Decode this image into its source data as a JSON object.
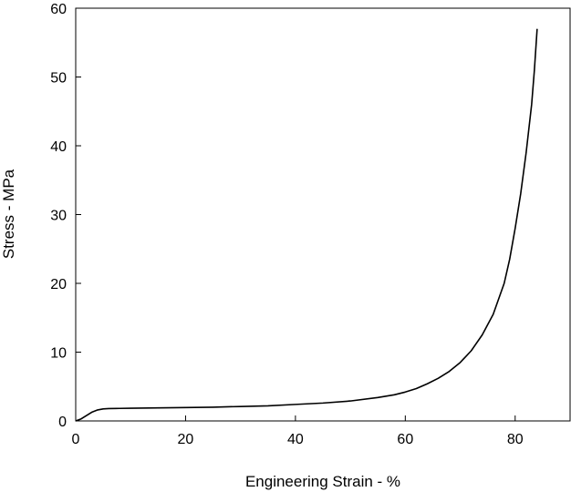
{
  "chart_data": {
    "type": "line",
    "title": "",
    "xlabel": "Engineering Strain - %",
    "ylabel": "Stress - MPa",
    "xlim": [
      0,
      90
    ],
    "ylim": [
      0,
      60
    ],
    "x_ticks": [
      0,
      20,
      40,
      60,
      80
    ],
    "y_ticks": [
      0,
      10,
      20,
      30,
      40,
      50,
      60
    ],
    "grid": false,
    "legend": "none",
    "series": [
      {
        "color": "#000000",
        "x": [
          0,
          1,
          2,
          3,
          4,
          5,
          6,
          8,
          10,
          15,
          20,
          25,
          30,
          35,
          40,
          45,
          50,
          55,
          58,
          60,
          62,
          64,
          66,
          68,
          70,
          72,
          74,
          76,
          78,
          79,
          80,
          81,
          82,
          83,
          83.5,
          84
        ],
        "y": [
          0,
          0.3,
          0.8,
          1.3,
          1.6,
          1.75,
          1.8,
          1.82,
          1.85,
          1.9,
          1.95,
          2.0,
          2.1,
          2.2,
          2.4,
          2.6,
          2.9,
          3.4,
          3.8,
          4.2,
          4.7,
          5.4,
          6.2,
          7.2,
          8.5,
          10.2,
          12.5,
          15.5,
          20.0,
          23.5,
          28.0,
          33.0,
          39.0,
          46.0,
          51.0,
          57.0
        ]
      }
    ]
  }
}
